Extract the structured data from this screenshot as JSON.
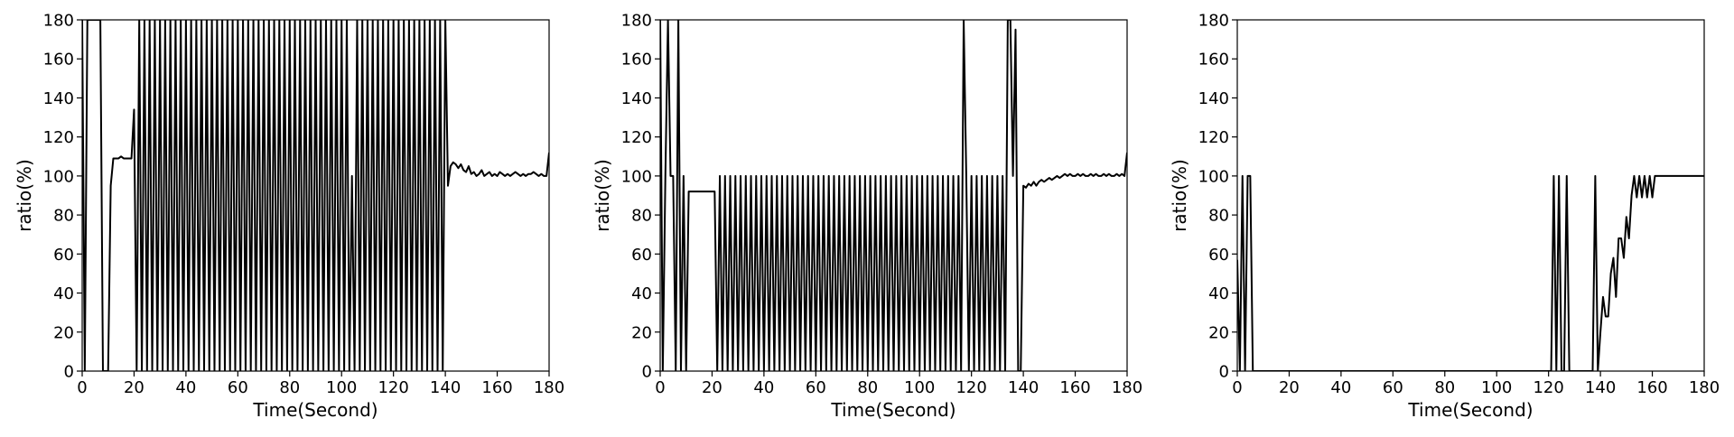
{
  "chart_data": [
    {
      "type": "line",
      "xlabel": "Time(Second)",
      "ylabel": "ratio(%)",
      "color": "#000000",
      "xlim": [
        0,
        180
      ],
      "ylim": [
        0,
        180
      ],
      "xticks": [
        0,
        20,
        40,
        60,
        80,
        100,
        120,
        140,
        160,
        180
      ],
      "yticks": [
        0,
        20,
        40,
        60,
        80,
        100,
        120,
        140,
        160,
        180
      ],
      "x": [
        0,
        1,
        2,
        3,
        4,
        5,
        6,
        7,
        8,
        9,
        10,
        11,
        12,
        13,
        14,
        15,
        16,
        17,
        18,
        19,
        20,
        21,
        22,
        23,
        24,
        25,
        26,
        27,
        28,
        29,
        30,
        31,
        32,
        33,
        34,
        35,
        36,
        37,
        38,
        39,
        40,
        41,
        42,
        43,
        44,
        45,
        46,
        47,
        48,
        49,
        50,
        51,
        52,
        53,
        54,
        55,
        56,
        57,
        58,
        59,
        60,
        61,
        62,
        63,
        64,
        65,
        66,
        67,
        68,
        69,
        70,
        71,
        72,
        73,
        74,
        75,
        76,
        77,
        78,
        79,
        80,
        81,
        82,
        83,
        84,
        85,
        86,
        87,
        88,
        89,
        90,
        91,
        92,
        93,
        94,
        95,
        96,
        97,
        98,
        99,
        100,
        101,
        102,
        103,
        104,
        105,
        106,
        107,
        108,
        109,
        110,
        111,
        112,
        113,
        114,
        115,
        116,
        117,
        118,
        119,
        120,
        121,
        122,
        123,
        124,
        125,
        126,
        127,
        128,
        129,
        130,
        131,
        132,
        133,
        134,
        135,
        136,
        137,
        138,
        139,
        140,
        141,
        142,
        143,
        144,
        145,
        146,
        147,
        148,
        149,
        150,
        151,
        152,
        153,
        154,
        155,
        156,
        157,
        158,
        159,
        160,
        161,
        162,
        163,
        164,
        165,
        166,
        167,
        168,
        169,
        170,
        171,
        172,
        173,
        174,
        175,
        176,
        177,
        178,
        179,
        180
      ],
      "values": [
        180,
        0,
        180,
        180,
        180,
        180,
        180,
        180,
        0,
        0,
        0,
        95,
        109,
        109,
        109,
        110,
        109,
        109,
        109,
        109,
        134,
        0,
        180,
        0,
        180,
        0,
        180,
        0,
        180,
        0,
        180,
        0,
        180,
        0,
        180,
        0,
        180,
        0,
        180,
        0,
        180,
        0,
        180,
        0,
        180,
        0,
        180,
        0,
        180,
        0,
        180,
        0,
        180,
        0,
        180,
        0,
        180,
        0,
        180,
        0,
        180,
        0,
        180,
        0,
        180,
        0,
        180,
        0,
        180,
        0,
        180,
        0,
        180,
        0,
        180,
        0,
        180,
        0,
        180,
        0,
        180,
        0,
        180,
        0,
        180,
        0,
        180,
        0,
        180,
        0,
        180,
        0,
        180,
        0,
        180,
        0,
        180,
        0,
        180,
        0,
        180,
        0,
        180,
        0,
        100,
        0,
        180,
        0,
        180,
        0,
        180,
        0,
        180,
        0,
        180,
        0,
        180,
        0,
        180,
        0,
        180,
        0,
        180,
        0,
        180,
        0,
        180,
        0,
        180,
        0,
        180,
        0,
        180,
        0,
        180,
        0,
        180,
        0,
        180,
        0,
        180,
        95,
        105,
        107,
        106,
        104,
        106,
        103,
        102,
        105,
        101,
        102,
        100,
        101,
        103,
        100,
        101,
        102,
        100,
        101,
        100,
        102,
        101,
        100,
        101,
        100,
        101,
        102,
        101,
        100,
        101,
        100,
        101,
        101,
        102,
        101,
        100,
        101,
        100,
        100,
        112
      ]
    },
    {
      "type": "line",
      "xlabel": "Time(Second)",
      "ylabel": "ratio(%)",
      "color": "#000000",
      "xlim": [
        0,
        180
      ],
      "ylim": [
        0,
        180
      ],
      "xticks": [
        0,
        20,
        40,
        60,
        80,
        100,
        120,
        140,
        160,
        180
      ],
      "yticks": [
        0,
        20,
        40,
        60,
        80,
        100,
        120,
        140,
        160,
        180
      ],
      "x": [
        0,
        1,
        2,
        3,
        4,
        5,
        6,
        7,
        8,
        9,
        10,
        11,
        12,
        13,
        14,
        15,
        16,
        17,
        18,
        19,
        20,
        21,
        22,
        23,
        24,
        25,
        26,
        27,
        28,
        29,
        30,
        31,
        32,
        33,
        34,
        35,
        36,
        37,
        38,
        39,
        40,
        41,
        42,
        43,
        44,
        45,
        46,
        47,
        48,
        49,
        50,
        51,
        52,
        53,
        54,
        55,
        56,
        57,
        58,
        59,
        60,
        61,
        62,
        63,
        64,
        65,
        66,
        67,
        68,
        69,
        70,
        71,
        72,
        73,
        74,
        75,
        76,
        77,
        78,
        79,
        80,
        81,
        82,
        83,
        84,
        85,
        86,
        87,
        88,
        89,
        90,
        91,
        92,
        93,
        94,
        95,
        96,
        97,
        98,
        99,
        100,
        101,
        102,
        103,
        104,
        105,
        106,
        107,
        108,
        109,
        110,
        111,
        112,
        113,
        114,
        115,
        116,
        117,
        118,
        119,
        120,
        121,
        122,
        123,
        124,
        125,
        126,
        127,
        128,
        129,
        130,
        131,
        132,
        133,
        134,
        135,
        136,
        137,
        138,
        139,
        140,
        141,
        142,
        143,
        144,
        145,
        146,
        147,
        148,
        149,
        150,
        151,
        152,
        153,
        154,
        155,
        156,
        157,
        158,
        159,
        160,
        161,
        162,
        163,
        164,
        165,
        166,
        167,
        168,
        169,
        170,
        171,
        172,
        173,
        174,
        175,
        176,
        177,
        178,
        179,
        180
      ],
      "values": [
        180,
        0,
        100,
        180,
        100,
        100,
        0,
        180,
        0,
        100,
        0,
        92,
        92,
        92,
        92,
        92,
        92,
        92,
        92,
        92,
        92,
        92,
        0,
        100,
        0,
        100,
        0,
        100,
        0,
        100,
        0,
        100,
        0,
        100,
        0,
        100,
        0,
        100,
        0,
        100,
        0,
        100,
        0,
        100,
        0,
        100,
        0,
        100,
        0,
        100,
        0,
        100,
        0,
        100,
        0,
        100,
        0,
        100,
        0,
        100,
        0,
        100,
        0,
        100,
        0,
        100,
        0,
        100,
        0,
        100,
        0,
        100,
        0,
        100,
        0,
        100,
        0,
        100,
        0,
        100,
        0,
        100,
        0,
        100,
        0,
        100,
        0,
        100,
        0,
        100,
        0,
        100,
        0,
        100,
        0,
        100,
        0,
        100,
        0,
        100,
        0,
        100,
        0,
        100,
        0,
        100,
        0,
        100,
        0,
        100,
        0,
        100,
        0,
        100,
        0,
        100,
        0,
        180,
        100,
        0,
        100,
        0,
        100,
        0,
        100,
        0,
        100,
        0,
        100,
        0,
        100,
        0,
        100,
        0,
        180,
        180,
        100,
        175,
        0,
        0,
        95,
        94,
        96,
        95,
        97,
        95,
        97,
        98,
        97,
        98,
        99,
        98,
        99,
        100,
        99,
        100,
        101,
        100,
        101,
        100,
        100,
        101,
        100,
        101,
        100,
        100,
        101,
        100,
        101,
        100,
        100,
        101,
        100,
        101,
        100,
        100,
        101,
        100,
        101,
        100,
        112
      ]
    },
    {
      "type": "line",
      "xlabel": "Time(Second)",
      "ylabel": "ratio(%)",
      "color": "#000000",
      "xlim": [
        0,
        180
      ],
      "ylim": [
        0,
        180
      ],
      "xticks": [
        0,
        20,
        40,
        60,
        80,
        100,
        120,
        140,
        160,
        180
      ],
      "yticks": [
        0,
        20,
        40,
        60,
        80,
        100,
        120,
        140,
        160,
        180
      ],
      "x": [
        0,
        1,
        2,
        3,
        4,
        5,
        6,
        7,
        8,
        9,
        10,
        11,
        12,
        13,
        14,
        15,
        16,
        17,
        18,
        19,
        20,
        21,
        22,
        23,
        24,
        25,
        26,
        27,
        28,
        29,
        30,
        31,
        32,
        33,
        34,
        35,
        36,
        37,
        38,
        39,
        40,
        41,
        42,
        43,
        44,
        45,
        46,
        47,
        48,
        49,
        50,
        51,
        52,
        53,
        54,
        55,
        56,
        57,
        58,
        59,
        60,
        61,
        62,
        63,
        64,
        65,
        66,
        67,
        68,
        69,
        70,
        71,
        72,
        73,
        74,
        75,
        76,
        77,
        78,
        79,
        80,
        81,
        82,
        83,
        84,
        85,
        86,
        87,
        88,
        89,
        90,
        91,
        92,
        93,
        94,
        95,
        96,
        97,
        98,
        99,
        100,
        101,
        102,
        103,
        104,
        105,
        106,
        107,
        108,
        109,
        110,
        111,
        112,
        113,
        114,
        115,
        116,
        117,
        118,
        119,
        120,
        121,
        122,
        123,
        124,
        125,
        126,
        127,
        128,
        129,
        130,
        131,
        132,
        133,
        134,
        135,
        136,
        137,
        138,
        139,
        140,
        141,
        142,
        143,
        144,
        145,
        146,
        147,
        148,
        149,
        150,
        151,
        152,
        153,
        154,
        155,
        156,
        157,
        158,
        159,
        160,
        161,
        162,
        163,
        164,
        165,
        166,
        167,
        168,
        169,
        170,
        171,
        172,
        173,
        174,
        175,
        176,
        177,
        178,
        179,
        180
      ],
      "values": [
        57,
        0,
        100,
        0,
        100,
        100,
        0,
        0,
        0,
        0,
        0,
        0,
        0,
        0,
        0,
        0,
        0,
        0,
        0,
        0,
        0,
        0,
        0,
        0,
        0,
        0,
        0,
        0,
        0,
        0,
        0,
        0,
        0,
        0,
        0,
        0,
        0,
        0,
        0,
        0,
        0,
        0,
        0,
        0,
        0,
        0,
        0,
        0,
        0,
        0,
        0,
        0,
        0,
        0,
        0,
        0,
        0,
        0,
        0,
        0,
        0,
        0,
        0,
        0,
        0,
        0,
        0,
        0,
        0,
        0,
        0,
        0,
        0,
        0,
        0,
        0,
        0,
        0,
        0,
        0,
        0,
        0,
        0,
        0,
        0,
        0,
        0,
        0,
        0,
        0,
        0,
        0,
        0,
        0,
        0,
        0,
        0,
        0,
        0,
        0,
        0,
        0,
        0,
        0,
        0,
        0,
        0,
        0,
        0,
        0,
        0,
        0,
        0,
        0,
        0,
        0,
        0,
        0,
        0,
        0,
        0,
        0,
        100,
        0,
        100,
        0,
        0,
        100,
        0,
        0,
        0,
        0,
        0,
        0,
        0,
        0,
        0,
        0,
        100,
        0,
        20,
        38,
        28,
        28,
        50,
        58,
        38,
        68,
        68,
        58,
        79,
        68,
        90,
        100,
        89,
        100,
        89,
        100,
        89,
        100,
        89,
        100,
        100,
        100,
        100,
        100,
        100,
        100,
        100,
        100,
        100,
        100,
        100,
        100,
        100,
        100,
        100,
        100,
        100,
        100,
        100
      ]
    }
  ]
}
